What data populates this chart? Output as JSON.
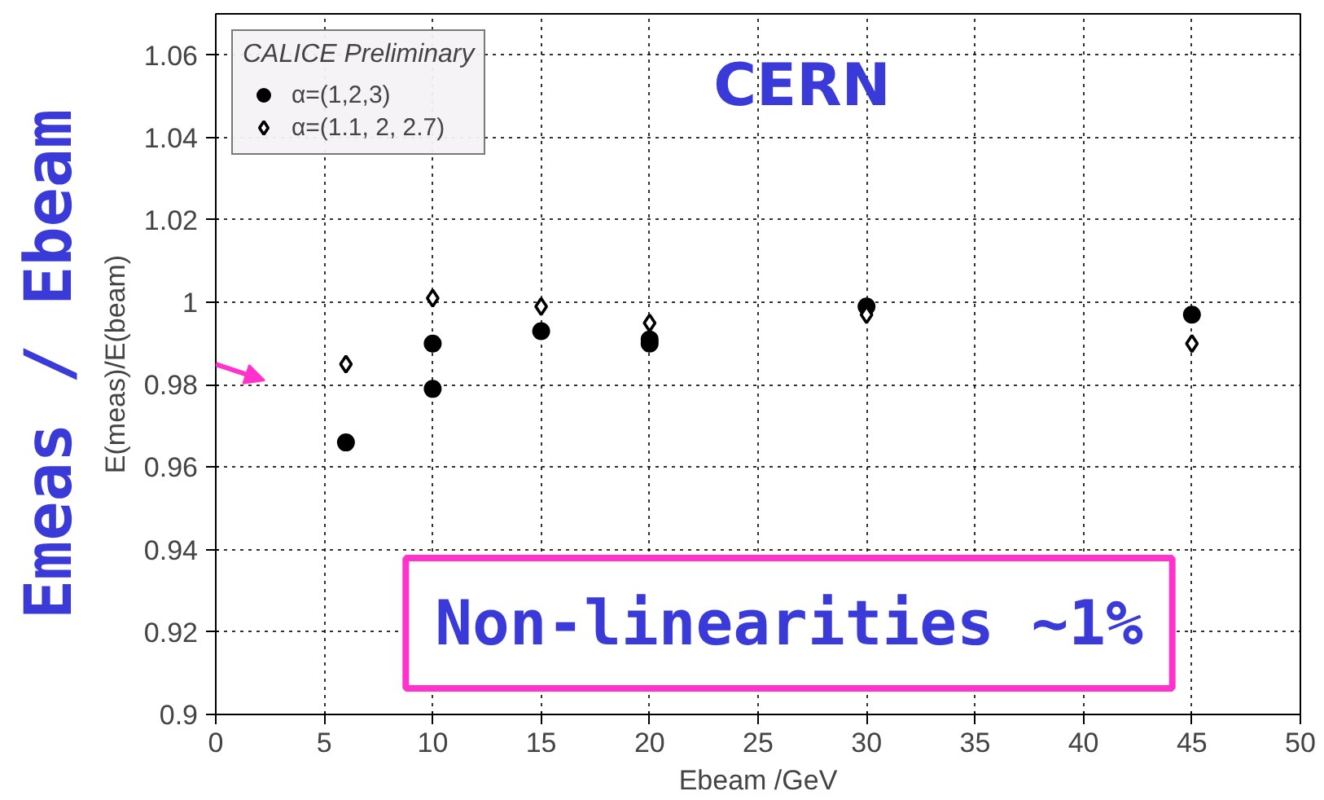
{
  "chart_data": {
    "type": "scatter",
    "xlabel": "Ebeam /GeV",
    "ylabel": "E(meas)/E(beam)",
    "legend_title": "CALICE Preliminary",
    "xlim": [
      0,
      50
    ],
    "ylim": [
      0.9,
      1.07
    ],
    "xticks": [
      0,
      5,
      10,
      15,
      20,
      25,
      30,
      35,
      40,
      45,
      50
    ],
    "yticks": [
      0.9,
      0.92,
      0.94,
      0.96,
      0.98,
      1,
      1.02,
      1.04,
      1.06
    ],
    "grid": true,
    "legend": "top left",
    "series": [
      {
        "name": "α=(1,2,3)",
        "color": "#000000",
        "marker": "circle",
        "x": [
          6,
          10,
          10,
          15,
          20,
          20,
          30,
          45
        ],
        "values": [
          0.966,
          0.99,
          0.979,
          0.993,
          0.991,
          0.99,
          0.999,
          0.997
        ]
      },
      {
        "name": "α=(1.1, 2, 2.7)",
        "color": "#000000",
        "marker": "diamond",
        "x": [
          6,
          10,
          15,
          20,
          30,
          45
        ],
        "values": [
          0.985,
          1.001,
          0.999,
          0.995,
          0.997,
          0.99
        ]
      }
    ],
    "annotations": [
      "Emeas / Ebeam",
      "CERN",
      "Non-linearities ~1%"
    ]
  }
}
